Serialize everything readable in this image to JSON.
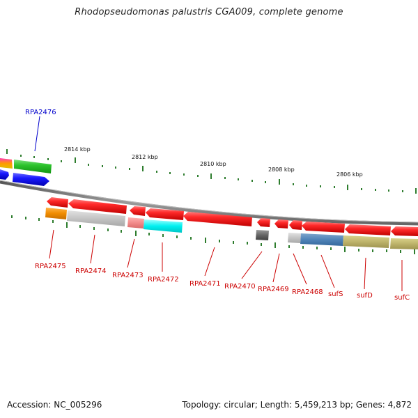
{
  "title": "Rhodopseudomonas palustris CGA009, complete genome",
  "footer": {
    "accession": "Accession: NC_005296",
    "summary": "Topology: circular; Length: 5,459,213 bp; Genes: 4,872"
  },
  "colors": {
    "line_label": "#cc0000",
    "blue_label": "#0000cc",
    "tick": "#2e7d2e",
    "backbone": "#777777"
  },
  "ruler_labels": [
    "2814 kbp",
    "2812 kbp",
    "2810 kbp",
    "2808 kbp",
    "2806 kbp"
  ],
  "gene_labels": [
    {
      "id": "rpa2476",
      "text": "RPA2476",
      "color": "blue"
    },
    {
      "id": "rpa2475",
      "text": "RPA2475",
      "color": "red"
    },
    {
      "id": "rpa2474",
      "text": "RPA2474",
      "color": "red"
    },
    {
      "id": "rpa2473",
      "text": "RPA2473",
      "color": "red"
    },
    {
      "id": "rpa2472",
      "text": "RPA2472",
      "color": "red"
    },
    {
      "id": "rpa2471",
      "text": "RPA2471",
      "color": "red"
    },
    {
      "id": "rpa2470",
      "text": "RPA2470",
      "color": "red"
    },
    {
      "id": "rpa2469",
      "text": "RPA2469",
      "color": "red"
    },
    {
      "id": "rpa2468",
      "text": "RPA2468",
      "color": "red"
    },
    {
      "id": "sufs",
      "text": "sufS",
      "color": "red"
    },
    {
      "id": "sufd",
      "text": "sufD",
      "color": "red"
    },
    {
      "id": "sufc",
      "text": "sufC",
      "color": "red"
    }
  ]
}
